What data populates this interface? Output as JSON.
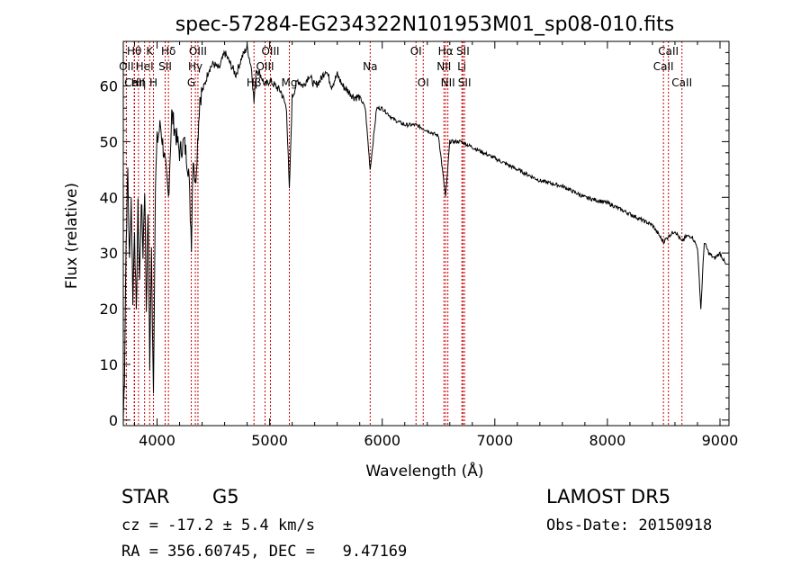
{
  "title": "spec-57284-EG234322N101953M01_sp08-010.fits",
  "info": {
    "class_label": "STAR",
    "subclass_label": "G5",
    "survey": "LAMOST DR5",
    "cz": "cz = -17.2 ± 5.4 km/s",
    "obs_date": "Obs-Date: 20150918",
    "coords": "RA = 356.60745, DEC =   9.47169"
  },
  "chart_data": {
    "type": "line",
    "title": "spec-57284-EG234322N101953M01_sp08-010.fits",
    "xlabel": "Wavelength (Å)",
    "ylabel": "Flux (relative)",
    "xlim": [
      3700,
      9080
    ],
    "ylim": [
      -1,
      68
    ],
    "xticks": [
      4000,
      5000,
      6000,
      7000,
      8000,
      9000
    ],
    "yticks": [
      0,
      10,
      20,
      30,
      40,
      50,
      60
    ],
    "grid": false,
    "line_color": "#000000",
    "marker_color": "#cc0000",
    "series": [
      {
        "x": [
          3700,
          3710,
          3725,
          3740,
          3755,
          3770,
          3785,
          3800,
          3815,
          3830,
          3845,
          3860,
          3875,
          3890,
          3905,
          3920,
          3935,
          3950,
          3968,
          3985,
          4000,
          4030,
          4060,
          4101,
          4130,
          4160,
          4200,
          4240,
          4280,
          4305,
          4320,
          4340,
          4380,
          4420,
          4460,
          4500,
          4550,
          4600,
          4650,
          4700,
          4750,
          4800,
          4840,
          4861,
          4880,
          4920,
          4960,
          5000,
          5050,
          5100,
          5150,
          5175,
          5200,
          5250,
          5300,
          5350,
          5400,
          5450,
          5500,
          5550,
          5600,
          5650,
          5700,
          5750,
          5800,
          5850,
          5893,
          5950,
          6000,
          6100,
          6200,
          6300,
          6400,
          6500,
          6563,
          6600,
          6700,
          6800,
          6900,
          7000,
          7200,
          7400,
          7600,
          7800,
          8000,
          8200,
          8400,
          8498,
          8542,
          8600,
          8662,
          8700,
          8750,
          8800,
          8830,
          8860,
          8900,
          8950,
          9000,
          9050
        ],
        "y": [
          0,
          8,
          32,
          45,
          28,
          40,
          22,
          35,
          18,
          38,
          25,
          40,
          30,
          42,
          20,
          38,
          10,
          30,
          5,
          42,
          50,
          53,
          48,
          40,
          55,
          52,
          48,
          50,
          45,
          32,
          48,
          42,
          58,
          60,
          63,
          64,
          63,
          66,
          64,
          62,
          65,
          67,
          63,
          57,
          63,
          62,
          60,
          61,
          60,
          59,
          56,
          41,
          58,
          61,
          60,
          62,
          60,
          61,
          63,
          60,
          62,
          60,
          59,
          58,
          58,
          56,
          45,
          56,
          56,
          54,
          53,
          53,
          52,
          51,
          40,
          50,
          50,
          49,
          48,
          47,
          45,
          43,
          42,
          40,
          39,
          37,
          35,
          32,
          33,
          34,
          32,
          33,
          33,
          31,
          20,
          32,
          30,
          29,
          30,
          28
        ]
      }
    ],
    "lines": [
      {
        "name": "Hθ",
        "wl": 3797
      },
      {
        "name": "Hη",
        "wl": 3835
      },
      {
        "name": "OII",
        "wl": 3727
      },
      {
        "name": "CaII",
        "wl": 3800
      },
      {
        "name": "HeI",
        "wl": 3889
      },
      {
        "name": "K",
        "wl": 3934
      },
      {
        "name": "H",
        "wl": 3968
      },
      {
        "name": "SII",
        "wl": 4072
      },
      {
        "name": "Hδ",
        "wl": 4101
      },
      {
        "name": "G",
        "wl": 4304
      },
      {
        "name": "Hγ",
        "wl": 4340
      },
      {
        "name": "OIII",
        "wl": 4363
      },
      {
        "name": "Hβ",
        "wl": 4861
      },
      {
        "name": "OIII",
        "wl": 4959
      },
      {
        "name": "OIII",
        "wl": 5007
      },
      {
        "name": "Mg",
        "wl": 5175
      },
      {
        "name": "Na",
        "wl": 5893
      },
      {
        "name": "OI",
        "wl": 6300
      },
      {
        "name": "OI",
        "wl": 6364
      },
      {
        "name": "NII",
        "wl": 6548
      },
      {
        "name": "Hα",
        "wl": 6563
      },
      {
        "name": "NII",
        "wl": 6583
      },
      {
        "name": "Li",
        "wl": 6707
      },
      {
        "name": "SII",
        "wl": 6717
      },
      {
        "name": "SII",
        "wl": 6731
      },
      {
        "name": "CaII",
        "wl": 8498
      },
      {
        "name": "CaII",
        "wl": 8542
      },
      {
        "name": "CaII",
        "wl": 8662
      }
    ],
    "line_label_rows": [
      {
        "name": "Hθ",
        "wl": 3797,
        "row": 0
      },
      {
        "name": "K",
        "wl": 3934,
        "row": 0
      },
      {
        "name": "Hδ",
        "wl": 4101,
        "row": 0
      },
      {
        "name": "OIII",
        "wl": 4363,
        "row": 0
      },
      {
        "name": "OIII",
        "wl": 5007,
        "row": 0
      },
      {
        "name": "OI",
        "wl": 6300,
        "row": 0
      },
      {
        "name": "Hα",
        "wl": 6563,
        "row": 0
      },
      {
        "name": "SII",
        "wl": 6717,
        "row": 0
      },
      {
        "name": "CaII",
        "wl": 8542,
        "row": 0
      },
      {
        "name": "OII",
        "wl": 3727,
        "row": 1
      },
      {
        "name": "HeI",
        "wl": 3889,
        "row": 1
      },
      {
        "name": "SII",
        "wl": 4072,
        "row": 1
      },
      {
        "name": "Hγ",
        "wl": 4340,
        "row": 1
      },
      {
        "name": "OIII",
        "wl": 4959,
        "row": 1
      },
      {
        "name": "Na",
        "wl": 5893,
        "row": 1
      },
      {
        "name": "NII",
        "wl": 6548,
        "row": 1
      },
      {
        "name": "Li",
        "wl": 6707,
        "row": 1
      },
      {
        "name": "CaII",
        "wl": 8498,
        "row": 1
      },
      {
        "name": "CaII",
        "wl": 3800,
        "row": 2
      },
      {
        "name": "Hη",
        "wl": 3835,
        "row": 2
      },
      {
        "name": "H",
        "wl": 3968,
        "row": 2
      },
      {
        "name": "G",
        "wl": 4304,
        "row": 2
      },
      {
        "name": "Hβ",
        "wl": 4861,
        "row": 2
      },
      {
        "name": "Mg",
        "wl": 5175,
        "row": 2
      },
      {
        "name": "OI",
        "wl": 6364,
        "row": 2
      },
      {
        "name": "NII",
        "wl": 6583,
        "row": 2
      },
      {
        "name": "SII",
        "wl": 6731,
        "row": 2
      },
      {
        "name": "CaII",
        "wl": 8662,
        "row": 2
      }
    ]
  }
}
